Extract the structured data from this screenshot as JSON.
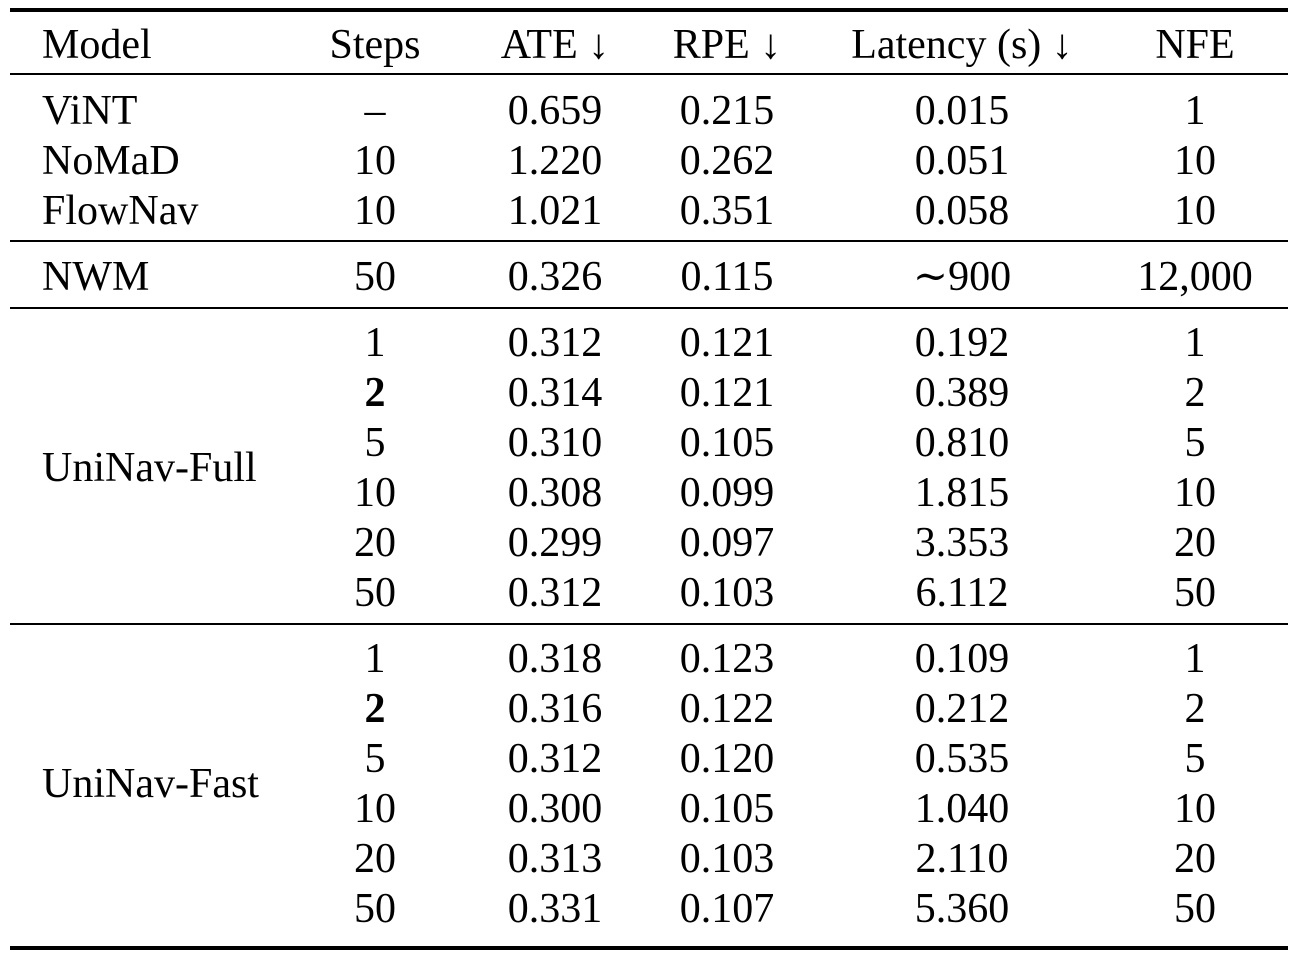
{
  "table": {
    "headers": [
      "Model",
      "Steps",
      "ATE ↓",
      "RPE ↓",
      "Latency (s) ↓",
      "NFE"
    ],
    "baselines": [
      {
        "model": "ViNT",
        "steps": "–",
        "ate": "0.659",
        "rpe": "0.215",
        "latency": "0.015",
        "nfe": "1"
      },
      {
        "model": "NoMaD",
        "steps": "10",
        "ate": "1.220",
        "rpe": "0.262",
        "latency": "0.051",
        "nfe": "10"
      },
      {
        "model": "FlowNav",
        "steps": "10",
        "ate": "1.021",
        "rpe": "0.351",
        "latency": "0.058",
        "nfe": "10"
      }
    ],
    "nwm": {
      "model": "NWM",
      "steps": "50",
      "ate": "0.326",
      "rpe": "0.115",
      "latency": "∼900",
      "nfe": "12,000"
    },
    "groups": [
      {
        "model": "UniNav-Full",
        "rows": [
          {
            "steps": "1",
            "ate": "0.312",
            "rpe": "0.121",
            "latency": "0.192",
            "nfe": "1",
            "bold_steps": false
          },
          {
            "steps": "2",
            "ate": "0.314",
            "rpe": "0.121",
            "latency": "0.389",
            "nfe": "2",
            "bold_steps": true
          },
          {
            "steps": "5",
            "ate": "0.310",
            "rpe": "0.105",
            "latency": "0.810",
            "nfe": "5",
            "bold_steps": false
          },
          {
            "steps": "10",
            "ate": "0.308",
            "rpe": "0.099",
            "latency": "1.815",
            "nfe": "10",
            "bold_steps": false
          },
          {
            "steps": "20",
            "ate": "0.299",
            "rpe": "0.097",
            "latency": "3.353",
            "nfe": "20",
            "bold_steps": false
          },
          {
            "steps": "50",
            "ate": "0.312",
            "rpe": "0.103",
            "latency": "6.112",
            "nfe": "50",
            "bold_steps": false
          }
        ]
      },
      {
        "model": "UniNav-Fast",
        "rows": [
          {
            "steps": "1",
            "ate": "0.318",
            "rpe": "0.123",
            "latency": "0.109",
            "nfe": "1",
            "bold_steps": false
          },
          {
            "steps": "2",
            "ate": "0.316",
            "rpe": "0.122",
            "latency": "0.212",
            "nfe": "2",
            "bold_steps": true
          },
          {
            "steps": "5",
            "ate": "0.312",
            "rpe": "0.120",
            "latency": "0.535",
            "nfe": "5",
            "bold_steps": false
          },
          {
            "steps": "10",
            "ate": "0.300",
            "rpe": "0.105",
            "latency": "1.040",
            "nfe": "10",
            "bold_steps": false
          },
          {
            "steps": "20",
            "ate": "0.313",
            "rpe": "0.103",
            "latency": "2.110",
            "nfe": "20",
            "bold_steps": false
          },
          {
            "steps": "50",
            "ate": "0.331",
            "rpe": "0.107",
            "latency": "5.360",
            "nfe": "50",
            "bold_steps": false
          }
        ]
      }
    ]
  }
}
